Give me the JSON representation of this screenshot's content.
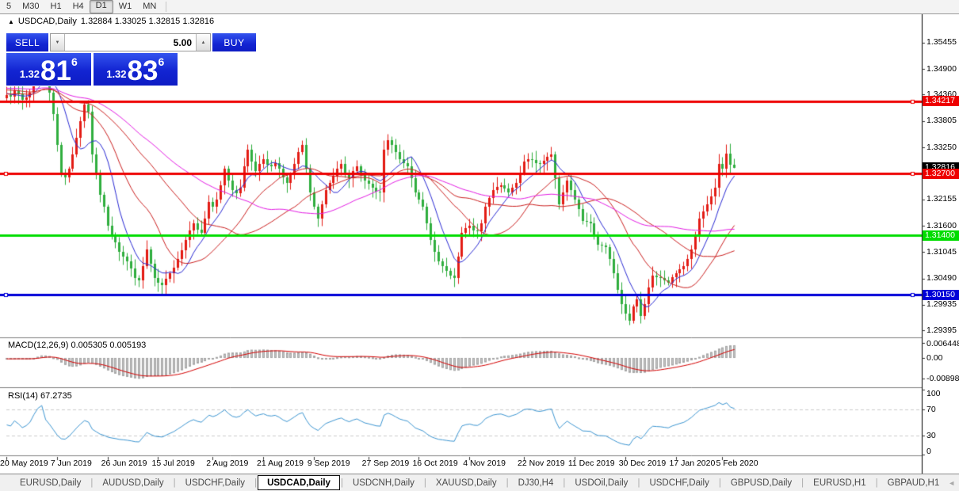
{
  "toolbar": {
    "timeframes": [
      {
        "label": "5",
        "active": false
      },
      {
        "label": "M30",
        "active": false
      },
      {
        "label": "H1",
        "active": false
      },
      {
        "label": "H4",
        "active": false
      },
      {
        "label": "D1",
        "active": true
      },
      {
        "label": "W1",
        "active": false
      },
      {
        "label": "MN",
        "active": false
      }
    ]
  },
  "chart": {
    "collapse_icon": "▲",
    "title_symbol": "USDCAD,Daily",
    "title_quotes": "1.32884 1.33025 1.32815 1.32816",
    "trade_panel": {
      "sell_label": "SELL",
      "buy_label": "BUY",
      "volume": "5.00",
      "down_icon": "▼",
      "up_icon": "▲",
      "sell_price_small": "1.32",
      "sell_price_big": "81",
      "sell_price_sup": "6",
      "buy_price_small": "1.32",
      "buy_price_big": "83",
      "buy_price_sup": "6"
    }
  },
  "chart_data": {
    "type": "candlestick",
    "symbol": "USDCAD",
    "timeframe": "Daily",
    "quote": {
      "open": 1.32884,
      "high": 1.33025,
      "low": 1.32815,
      "close": 1.32816
    },
    "first_open": 1.3428,
    "colors": {
      "bull": "#e31b14",
      "bear": "#2fae3e",
      "macd_hist": "#c3c3c3",
      "macd_signal": "#d40000",
      "rsi": "#3d96d2",
      "rsi_levels": "#cccccc"
    },
    "y_ticks": [
      {
        "t": "1.35455",
        "v": 1.35455
      },
      {
        "t": "1.34900",
        "v": 1.349
      },
      {
        "t": "1.34360",
        "v": 1.3436
      },
      {
        "t": "1.33805",
        "v": 1.33805
      },
      {
        "t": "1.33250",
        "v": 1.3325
      },
      {
        "t": "1.32155",
        "v": 1.32155
      },
      {
        "t": "1.31600",
        "v": 1.316
      },
      {
        "t": "1.31045",
        "v": 1.31045
      },
      {
        "t": "1.30490",
        "v": 1.3049
      },
      {
        "t": "1.29935",
        "v": 1.29935
      },
      {
        "t": "1.29395",
        "v": 1.29395
      }
    ],
    "h_lines": [
      {
        "price": 1.34217,
        "label": "1.34217",
        "color": "#ee0000",
        "text_color": "#ffffff",
        "handles": [
          "right"
        ]
      },
      {
        "price": 1.327,
        "label": "1.32700",
        "color": "#ee0000",
        "text_color": "#ffffff",
        "handles": [
          "left",
          "right"
        ]
      },
      {
        "price": 1.314,
        "label": "1.31400",
        "color": "#00dd00",
        "text_color": "#ffffff",
        "handles": []
      },
      {
        "price": 1.3015,
        "label": "1.30150",
        "color": "#0000d8",
        "text_color": "#ffffff",
        "handles": [
          "left",
          "right"
        ]
      }
    ],
    "current_price": {
      "value": 1.32816,
      "label": "1.32816",
      "bg": "#000000",
      "text_color": "#ffffff"
    },
    "x_labels": [
      {
        "t": "20 May 2019",
        "i": 0
      },
      {
        "t": "7 Jun 2019",
        "i": 13
      },
      {
        "t": "26 Jun 2019",
        "i": 26
      },
      {
        "t": "15 Jul 2019",
        "i": 39
      },
      {
        "t": "2 Aug 2019",
        "i": 53
      },
      {
        "t": "21 Aug 2019",
        "i": 66
      },
      {
        "t": "9 Sep 2019",
        "i": 79
      },
      {
        "t": "27 Sep 2019",
        "i": 93
      },
      {
        "t": "16 Oct 2019",
        "i": 106
      },
      {
        "t": "4 Nov 2019",
        "i": 119
      },
      {
        "t": "22 Nov 2019",
        "i": 133
      },
      {
        "t": "11 Dec 2019",
        "i": 146
      },
      {
        "t": "30 Dec 2019",
        "i": 159
      },
      {
        "t": "17 Jan 2020",
        "i": 172
      },
      {
        "t": "5 Feb 2020",
        "i": 184
      }
    ],
    "ma": [
      {
        "period": 8,
        "color": "#2a2ad4"
      },
      {
        "period": 20,
        "color": "#cc2020"
      },
      {
        "period": 38,
        "color": "#cc2020"
      },
      {
        "period": 55,
        "color": "#e41ce4"
      }
    ],
    "ma_warmup": [
      1.3455,
      1.346,
      1.3448,
      1.3452,
      1.344,
      1.3445,
      1.3458,
      1.347,
      1.3465,
      1.3455,
      1.345,
      1.3462,
      1.3475,
      1.348,
      1.347,
      1.346,
      1.345,
      1.3442,
      1.3448,
      1.3455,
      1.3465,
      1.3472,
      1.3468,
      1.346,
      1.3452,
      1.3445,
      1.344,
      1.3435,
      1.3442,
      1.345,
      1.3458,
      1.3465,
      1.347,
      1.3462,
      1.3455,
      1.3448,
      1.344,
      1.3432,
      1.3428,
      1.3435,
      1.3442,
      1.345,
      1.3445,
      1.3438,
      1.343,
      1.3425,
      1.3432,
      1.344,
      1.3448,
      1.3452,
      1.3445,
      1.3438,
      1.343,
      1.3428,
      1.3432
    ],
    "closes": [
      1.3435,
      1.3432,
      1.3445,
      1.3437,
      1.3425,
      1.343,
      1.344,
      1.3468,
      1.3505,
      1.353,
      1.347,
      1.344,
      1.3395,
      1.333,
      1.327,
      1.3262,
      1.328,
      1.331,
      1.3345,
      1.338,
      1.3415,
      1.34,
      1.331,
      1.327,
      1.3225,
      1.32,
      1.316,
      1.314,
      1.3125,
      1.3105,
      1.3095,
      1.3085,
      1.307,
      1.305,
      1.3045,
      1.3075,
      1.311,
      1.308,
      1.305,
      1.304,
      1.3035,
      1.3048,
      1.306,
      1.3072,
      1.309,
      1.3108,
      1.313,
      1.315,
      1.3165,
      1.3152,
      1.3145,
      1.3175,
      1.321,
      1.32,
      1.3215,
      1.3245,
      1.328,
      1.3255,
      1.3235,
      1.3228,
      1.324,
      1.3285,
      1.332,
      1.3295,
      1.3275,
      1.329,
      1.33,
      1.3288,
      1.3285,
      1.3292,
      1.328,
      1.3262,
      1.325,
      1.3268,
      1.329,
      1.3315,
      1.333,
      1.328,
      1.323,
      1.32,
      1.3175,
      1.3205,
      1.3235,
      1.325,
      1.3265,
      1.328,
      1.329,
      1.3272,
      1.326,
      1.3275,
      1.3285,
      1.327,
      1.3255,
      1.3248,
      1.324,
      1.3232,
      1.323,
      1.332,
      1.334,
      1.333,
      1.3315,
      1.33,
      1.3292,
      1.3285,
      1.326,
      1.323,
      1.3215,
      1.32,
      1.3165,
      1.313,
      1.3105,
      1.3085,
      1.3075,
      1.3065,
      1.3055,
      1.305,
      1.3095,
      1.3145,
      1.3155,
      1.316,
      1.315,
      1.3148,
      1.3165,
      1.32,
      1.3218,
      1.3235,
      1.3242,
      1.3245,
      1.3238,
      1.323,
      1.324,
      1.325,
      1.3272,
      1.3295,
      1.33,
      1.3298,
      1.3292,
      1.329,
      1.3296,
      1.3305,
      1.331,
      1.326,
      1.3205,
      1.323,
      1.3255,
      1.3235,
      1.3215,
      1.3195,
      1.317,
      1.3168,
      1.3165,
      1.314,
      1.312,
      1.3118,
      1.3115,
      1.309,
      1.306,
      1.3025,
      1.2995,
      1.2975,
      1.296,
      1.299,
      1.3005,
      1.297,
      1.2995,
      1.303,
      1.3055,
      1.3052,
      1.305,
      1.3045,
      1.304,
      1.3052,
      1.306,
      1.3068,
      1.3075,
      1.309,
      1.311,
      1.314,
      1.3175,
      1.319,
      1.3205,
      1.3222,
      1.324,
      1.329,
      1.328,
      1.3312,
      1.32884,
      1.32816
    ],
    "macd": {
      "label": "MACD(12,26,9)",
      "values": "0.005305 0.005193",
      "fast": 12,
      "slow": 26,
      "signal": 9,
      "axis": [
        {
          "t": "0.006448",
          "v": 0.006448
        },
        {
          "t": "0.00",
          "v": 0
        },
        {
          "t": "-0.008982",
          "v": -0.008982
        }
      ]
    },
    "rsi": {
      "label": "RSI(14)",
      "value": "67.2735",
      "period": 14,
      "levels": [
        70,
        30
      ],
      "axis": [
        {
          "t": "100",
          "v": 100
        },
        {
          "t": "70",
          "v": 70
        },
        {
          "t": "30",
          "v": 30
        },
        {
          "t": "0",
          "v": 0
        }
      ]
    }
  },
  "tabs": {
    "items": [
      {
        "label": "EURUSD,Daily"
      },
      {
        "label": "AUDUSD,Daily"
      },
      {
        "label": "USDCHF,Daily"
      },
      {
        "label": "USDCAD,Daily",
        "active": true
      },
      {
        "label": "USDCNH,Daily"
      },
      {
        "label": "XAUUSD,Daily"
      },
      {
        "label": "DJ30,H4"
      },
      {
        "label": "USDOil,Daily"
      },
      {
        "label": "USDCHF,Daily"
      },
      {
        "label": "GBPUSD,Daily"
      },
      {
        "label": "EURUSD,H1"
      },
      {
        "label": "GBPAUD,H1"
      }
    ],
    "separator": "|",
    "scroll_left_icon": "◄",
    "scroll_right_icon": "►"
  }
}
